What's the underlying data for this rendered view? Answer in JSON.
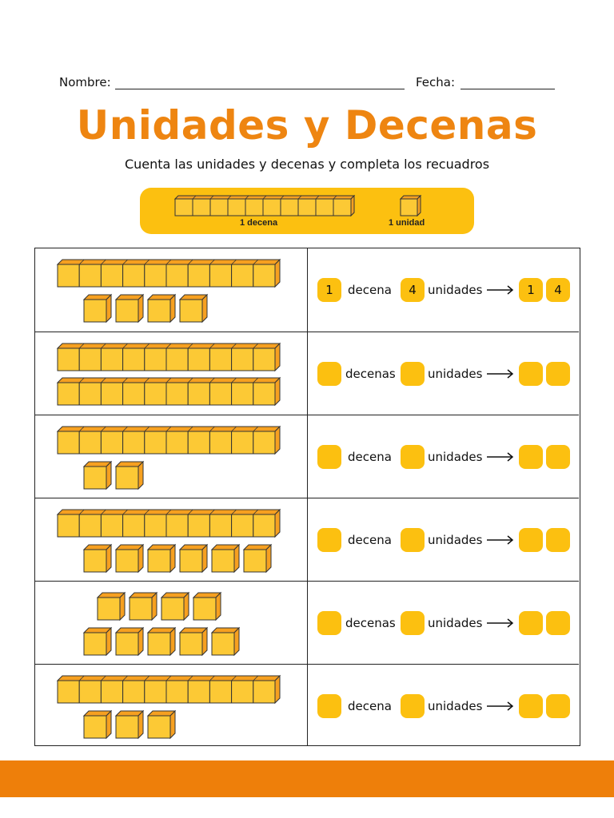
{
  "header": {
    "name_label": "Nombre:",
    "date_label": "Fecha:"
  },
  "title": "Unidades y Decenas",
  "subtitle": "Cuenta las unidades y decenas y completa los recuadros",
  "legend": {
    "ten_label": "1 decena",
    "one_label": "1 unidad"
  },
  "colors": {
    "title": "#ee8511",
    "accent": "#fcc010",
    "cube_front": "#fcc935",
    "cube_top": "#f6a020",
    "footer": "#ee7f0a"
  },
  "rows": [
    {
      "rods": 1,
      "cubes": [
        4
      ],
      "tens_word": "decena",
      "units_word": "unidades",
      "tens_value": "1",
      "units_value": "4",
      "result_tens": "1",
      "result_units": "4"
    },
    {
      "rods": 2,
      "cubes": [],
      "tens_word": "decenas",
      "units_word": "unidades",
      "tens_value": "",
      "units_value": "",
      "result_tens": "",
      "result_units": ""
    },
    {
      "rods": 1,
      "cubes": [
        2
      ],
      "tens_word": "decena",
      "units_word": "unidades",
      "tens_value": "",
      "units_value": "",
      "result_tens": "",
      "result_units": ""
    },
    {
      "rods": 1,
      "cubes": [
        6
      ],
      "tens_word": "decena",
      "units_word": "unidades",
      "tens_value": "",
      "units_value": "",
      "result_tens": "",
      "result_units": ""
    },
    {
      "rods": 0,
      "cubes": [
        4,
        5
      ],
      "tens_word": "decenas",
      "units_word": "unidades",
      "tens_value": "",
      "units_value": "",
      "result_tens": "",
      "result_units": ""
    },
    {
      "rods": 1,
      "cubes": [
        3
      ],
      "tens_word": "decena",
      "units_word": "unidades",
      "tens_value": "",
      "units_value": "",
      "result_tens": "",
      "result_units": ""
    }
  ]
}
